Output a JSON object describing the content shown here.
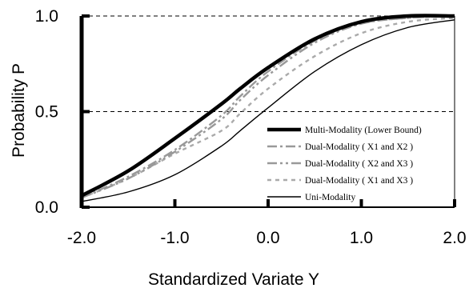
{
  "chart_data": {
    "type": "line",
    "xlabel": "Standardized Variate Y",
    "ylabel": "Probability P",
    "xlim": [
      -2.0,
      2.0
    ],
    "ylim": [
      0.0,
      1.0
    ],
    "x_ticks": [
      "-2.0",
      "-1.0",
      "0.0",
      "1.0",
      "2.0"
    ],
    "y_ticks": [
      "0.0",
      "0.5",
      "1.0"
    ],
    "x_tick_values": [
      -2.0,
      -1.0,
      0.0,
      1.0,
      2.0
    ],
    "y_tick_values": [
      0.0,
      0.5,
      1.0
    ],
    "reference_lines_y": [
      0.5,
      1.0
    ],
    "legend_position": "center-right",
    "x": [
      -2.0,
      -1.5,
      -1.0,
      -0.5,
      -0.3,
      0.0,
      0.5,
      1.0,
      1.5,
      2.0
    ],
    "series": [
      {
        "name": "Multi-Modality (Lower Bound)",
        "color": "#000000",
        "style": "solid-thick",
        "values": [
          0.06,
          0.19,
          0.36,
          0.54,
          0.62,
          0.73,
          0.88,
          0.97,
          1.0,
          1.0
        ]
      },
      {
        "name": "Dual-Modality ( X1 and X2 )",
        "color": "#999999",
        "style": "dash-dot",
        "values": [
          0.05,
          0.16,
          0.3,
          0.48,
          0.58,
          0.71,
          0.87,
          0.96,
          0.99,
          1.0
        ]
      },
      {
        "name": "Dual-Modality ( X2 and X3 )",
        "color": "#999999",
        "style": "dash-dot-dot",
        "values": [
          0.05,
          0.15,
          0.29,
          0.46,
          0.56,
          0.69,
          0.86,
          0.96,
          0.99,
          1.0
        ]
      },
      {
        "name": "Dual-Modality ( X1 and X3 )",
        "color": "#aaaaaa",
        "style": "dotted",
        "values": [
          0.05,
          0.15,
          0.28,
          0.4,
          0.49,
          0.62,
          0.79,
          0.91,
          0.97,
          0.99
        ]
      },
      {
        "name": "Uni-Modality",
        "color": "#000000",
        "style": "solid-thin",
        "values": [
          0.03,
          0.08,
          0.17,
          0.32,
          0.4,
          0.52,
          0.71,
          0.85,
          0.94,
          0.98
        ]
      }
    ]
  }
}
